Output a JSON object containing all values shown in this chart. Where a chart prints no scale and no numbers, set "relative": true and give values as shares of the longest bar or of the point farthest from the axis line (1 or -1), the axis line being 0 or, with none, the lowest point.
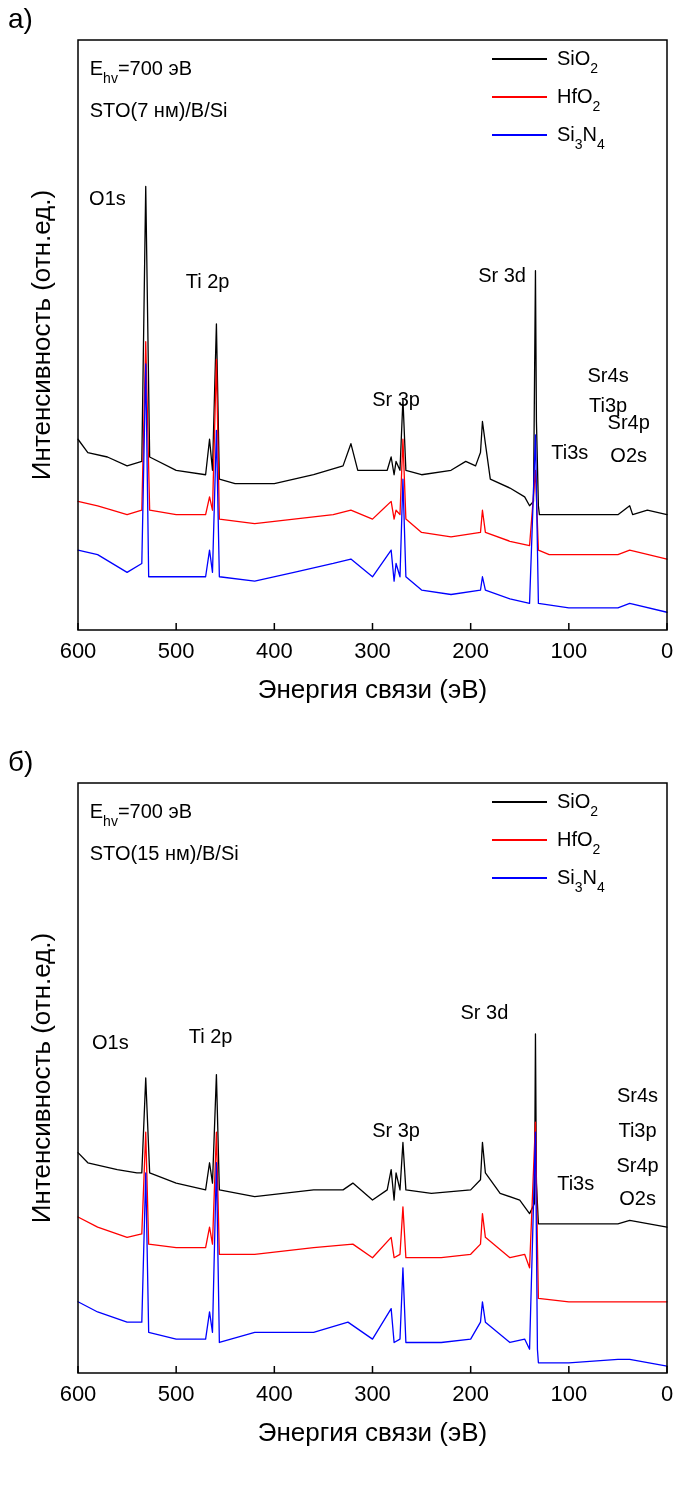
{
  "chart_data": [
    {
      "type": "line",
      "title": "а)",
      "xlabel": "Энергия связи (эВ)",
      "ylabel": "Интенсивность (отн.ед.)",
      "relative": true,
      "xlim": [
        600,
        0
      ],
      "xticks": [
        600,
        500,
        400,
        300,
        200,
        100,
        0
      ],
      "tick_labels": "x",
      "legend": "top right",
      "grid": false,
      "annotations": [
        "E$_{hv}$=700 эВ",
        "STO(7 нм)/B/Si",
        "O1s",
        "Ti 2p",
        "Sr 3d",
        "Sr 3p",
        "Sr4s",
        "Ti3p",
        "Ti3s",
        "Sr4p",
        "O2s"
      ],
      "series": [
        {
          "name": "SiO$_{2}$",
          "color": "#000000",
          "x": [
            600,
            590,
            570,
            550,
            535,
            531,
            527,
            500,
            470,
            466,
            463,
            459,
            456,
            440,
            400,
            360,
            330,
            322,
            315,
            300,
            285,
            281,
            278,
            276,
            272,
            269,
            266,
            250,
            220,
            205,
            195,
            190,
            188,
            185,
            180,
            160,
            145,
            140,
            136,
            134,
            133,
            131,
            130,
            100,
            50,
            38,
            35,
            20,
            0
          ],
          "values": [
            0.43,
            0.4,
            0.39,
            0.37,
            0.38,
            1.0,
            0.39,
            0.36,
            0.35,
            0.43,
            0.36,
            0.69,
            0.34,
            0.33,
            0.33,
            0.35,
            0.37,
            0.42,
            0.36,
            0.36,
            0.36,
            0.39,
            0.35,
            0.38,
            0.36,
            0.52,
            0.36,
            0.35,
            0.36,
            0.38,
            0.37,
            0.4,
            0.47,
            0.42,
            0.34,
            0.32,
            0.3,
            0.28,
            0.29,
            0.81,
            0.47,
            0.28,
            0.26,
            0.26,
            0.26,
            0.28,
            0.26,
            0.27,
            0.26
          ]
        },
        {
          "name": "HfO$_{2}$",
          "color": "#ff0000",
          "x": [
            600,
            580,
            550,
            535,
            531,
            527,
            500,
            470,
            466,
            463,
            459,
            456,
            420,
            380,
            340,
            322,
            300,
            281,
            278,
            276,
            272,
            269,
            266,
            250,
            220,
            190,
            188,
            185,
            160,
            140,
            134,
            131,
            120,
            50,
            38,
            0
          ],
          "values": [
            0.29,
            0.28,
            0.26,
            0.27,
            0.65,
            0.27,
            0.26,
            0.26,
            0.3,
            0.27,
            0.61,
            0.25,
            0.24,
            0.25,
            0.26,
            0.27,
            0.25,
            0.29,
            0.25,
            0.27,
            0.26,
            0.43,
            0.25,
            0.22,
            0.21,
            0.22,
            0.27,
            0.22,
            0.2,
            0.19,
            0.36,
            0.18,
            0.17,
            0.17,
            0.18,
            0.16
          ]
        },
        {
          "name": "Si$_{3}$N$_{4}$",
          "color": "#0000ff",
          "x": [
            600,
            580,
            550,
            535,
            531,
            528,
            500,
            470,
            466,
            463,
            459,
            456,
            420,
            380,
            340,
            322,
            300,
            281,
            278,
            276,
            272,
            269,
            266,
            250,
            220,
            190,
            188,
            185,
            160,
            140,
            134,
            131,
            100,
            50,
            38,
            0
          ],
          "values": [
            0.18,
            0.17,
            0.13,
            0.15,
            0.6,
            0.12,
            0.12,
            0.12,
            0.18,
            0.13,
            0.45,
            0.12,
            0.11,
            0.13,
            0.15,
            0.16,
            0.12,
            0.18,
            0.11,
            0.15,
            0.12,
            0.34,
            0.12,
            0.09,
            0.08,
            0.09,
            0.12,
            0.09,
            0.07,
            0.06,
            0.44,
            0.06,
            0.05,
            0.05,
            0.06,
            0.04
          ]
        }
      ]
    },
    {
      "type": "line",
      "title": "б)",
      "xlabel": "Энергия связи (эВ)",
      "ylabel": "Интенсивность (отн.ед.)",
      "relative": true,
      "xlim": [
        600,
        0
      ],
      "xticks": [
        600,
        500,
        400,
        300,
        200,
        100,
        0
      ],
      "tick_labels": "x",
      "legend": "top right",
      "grid": false,
      "annotations": [
        "E$_{hv}$=700 эВ",
        "STO(15 нм)/B/Si",
        "O1s",
        "Ti 2p",
        "Sr 3d",
        "Sr 3p",
        "Sr4s",
        "Ti3p",
        "Sr4p",
        "O2s",
        "Ti3s"
      ],
      "series": [
        {
          "name": "SiO$_{2}$",
          "color": "#000000",
          "x": [
            600,
            590,
            560,
            540,
            535,
            531,
            527,
            500,
            470,
            466,
            463,
            459,
            456,
            420,
            360,
            330,
            320,
            300,
            285,
            281,
            278,
            276,
            272,
            269,
            266,
            240,
            200,
            190,
            188,
            185,
            170,
            150,
            140,
            135,
            134,
            133,
            131,
            100,
            50,
            38,
            0
          ],
          "values": [
            0.65,
            0.62,
            0.6,
            0.59,
            0.59,
            0.87,
            0.59,
            0.56,
            0.54,
            0.62,
            0.56,
            0.88,
            0.54,
            0.52,
            0.54,
            0.54,
            0.56,
            0.51,
            0.54,
            0.6,
            0.51,
            0.59,
            0.54,
            0.68,
            0.54,
            0.53,
            0.54,
            0.57,
            0.68,
            0.59,
            0.53,
            0.51,
            0.47,
            0.5,
            1.0,
            0.56,
            0.44,
            0.44,
            0.44,
            0.45,
            0.43
          ]
        },
        {
          "name": "HfO$_{2}$",
          "color": "#ff0000",
          "x": [
            600,
            580,
            550,
            535,
            531,
            528,
            500,
            470,
            466,
            463,
            459,
            456,
            420,
            360,
            320,
            300,
            281,
            278,
            272,
            269,
            266,
            230,
            200,
            190,
            188,
            185,
            160,
            145,
            140,
            134,
            132,
            131,
            100,
            50,
            0
          ],
          "values": [
            0.46,
            0.43,
            0.4,
            0.41,
            0.71,
            0.38,
            0.37,
            0.37,
            0.43,
            0.38,
            0.71,
            0.35,
            0.35,
            0.37,
            0.38,
            0.34,
            0.4,
            0.34,
            0.35,
            0.49,
            0.34,
            0.34,
            0.35,
            0.38,
            0.47,
            0.4,
            0.34,
            0.35,
            0.31,
            0.74,
            0.38,
            0.22,
            0.21,
            0.21,
            0.21
          ]
        },
        {
          "name": "Si$_{3}$N$_{4}$",
          "color": "#0000ff",
          "x": [
            600,
            580,
            550,
            535,
            531,
            528,
            500,
            470,
            466,
            463,
            459,
            456,
            420,
            360,
            325,
            300,
            281,
            278,
            272,
            269,
            266,
            230,
            200,
            190,
            188,
            185,
            160,
            145,
            140,
            134,
            132,
            131,
            100,
            50,
            38,
            0
          ],
          "values": [
            0.21,
            0.18,
            0.15,
            0.15,
            0.59,
            0.12,
            0.1,
            0.1,
            0.18,
            0.12,
            0.62,
            0.09,
            0.12,
            0.12,
            0.15,
            0.1,
            0.19,
            0.09,
            0.1,
            0.31,
            0.09,
            0.09,
            0.1,
            0.15,
            0.21,
            0.15,
            0.09,
            0.1,
            0.07,
            0.71,
            0.07,
            0.03,
            0.03,
            0.04,
            0.04,
            0.02
          ]
        }
      ]
    }
  ]
}
